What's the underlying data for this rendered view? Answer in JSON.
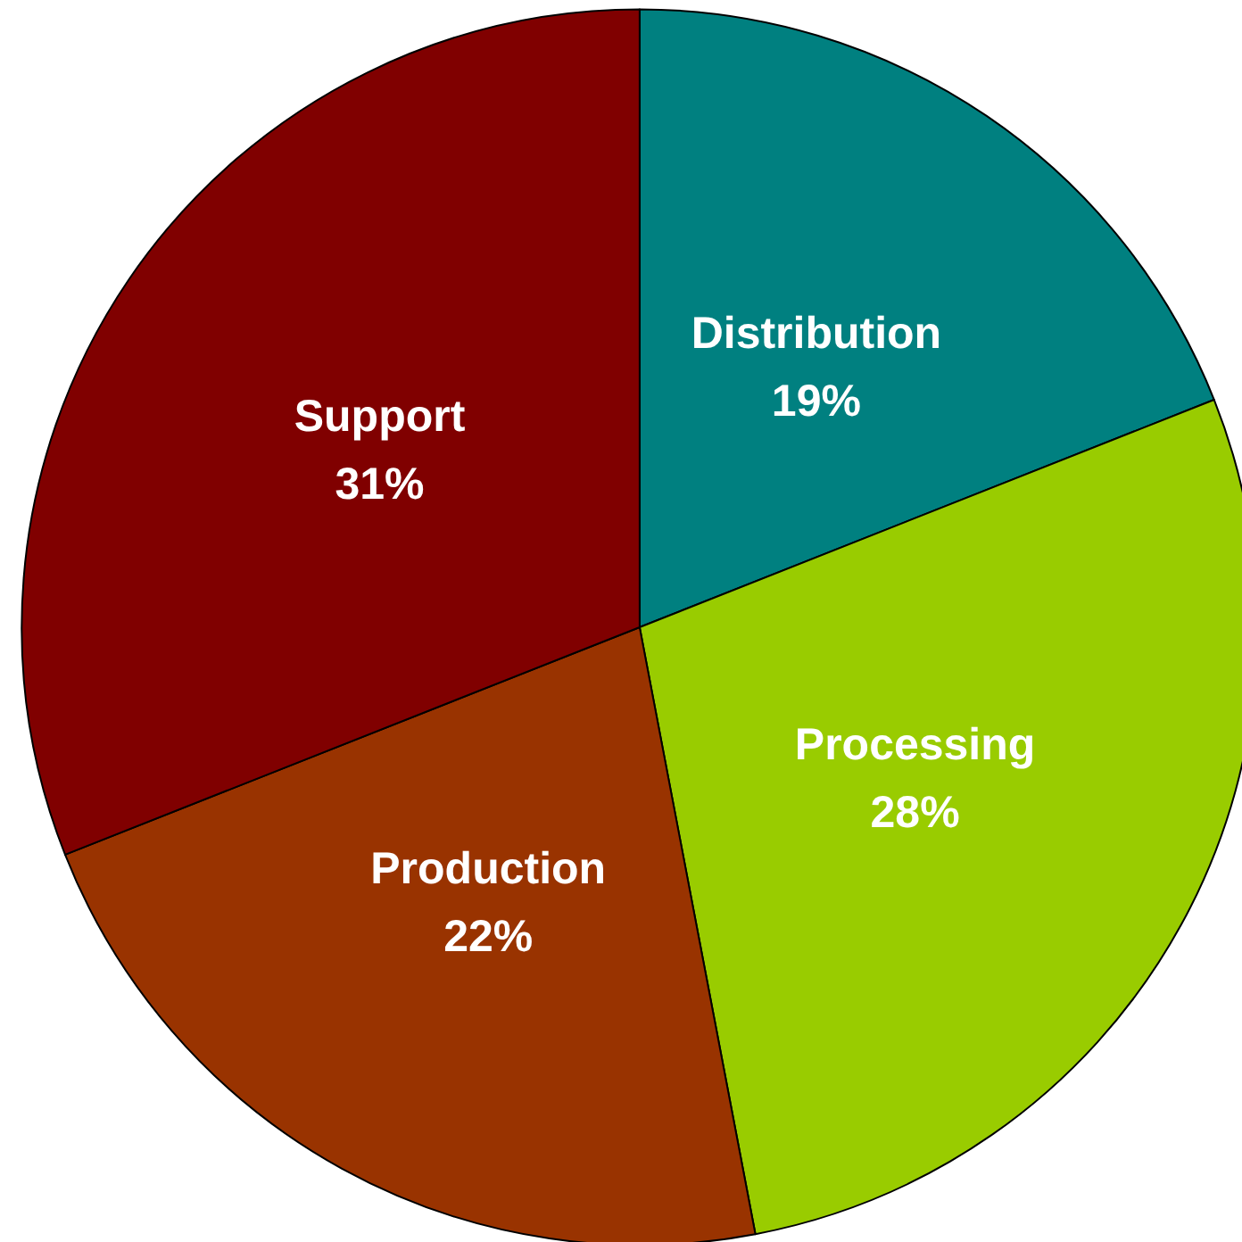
{
  "chart_data": {
    "type": "pie",
    "categories": [
      "Distribution",
      "Processing",
      "Production",
      "Support"
    ],
    "values": [
      19,
      28,
      22,
      31
    ],
    "value_labels": [
      "19%",
      "28%",
      "22%",
      "31%"
    ],
    "colors": [
      "#008080",
      "#99cc00",
      "#993300",
      "#800000"
    ],
    "legend": false
  }
}
